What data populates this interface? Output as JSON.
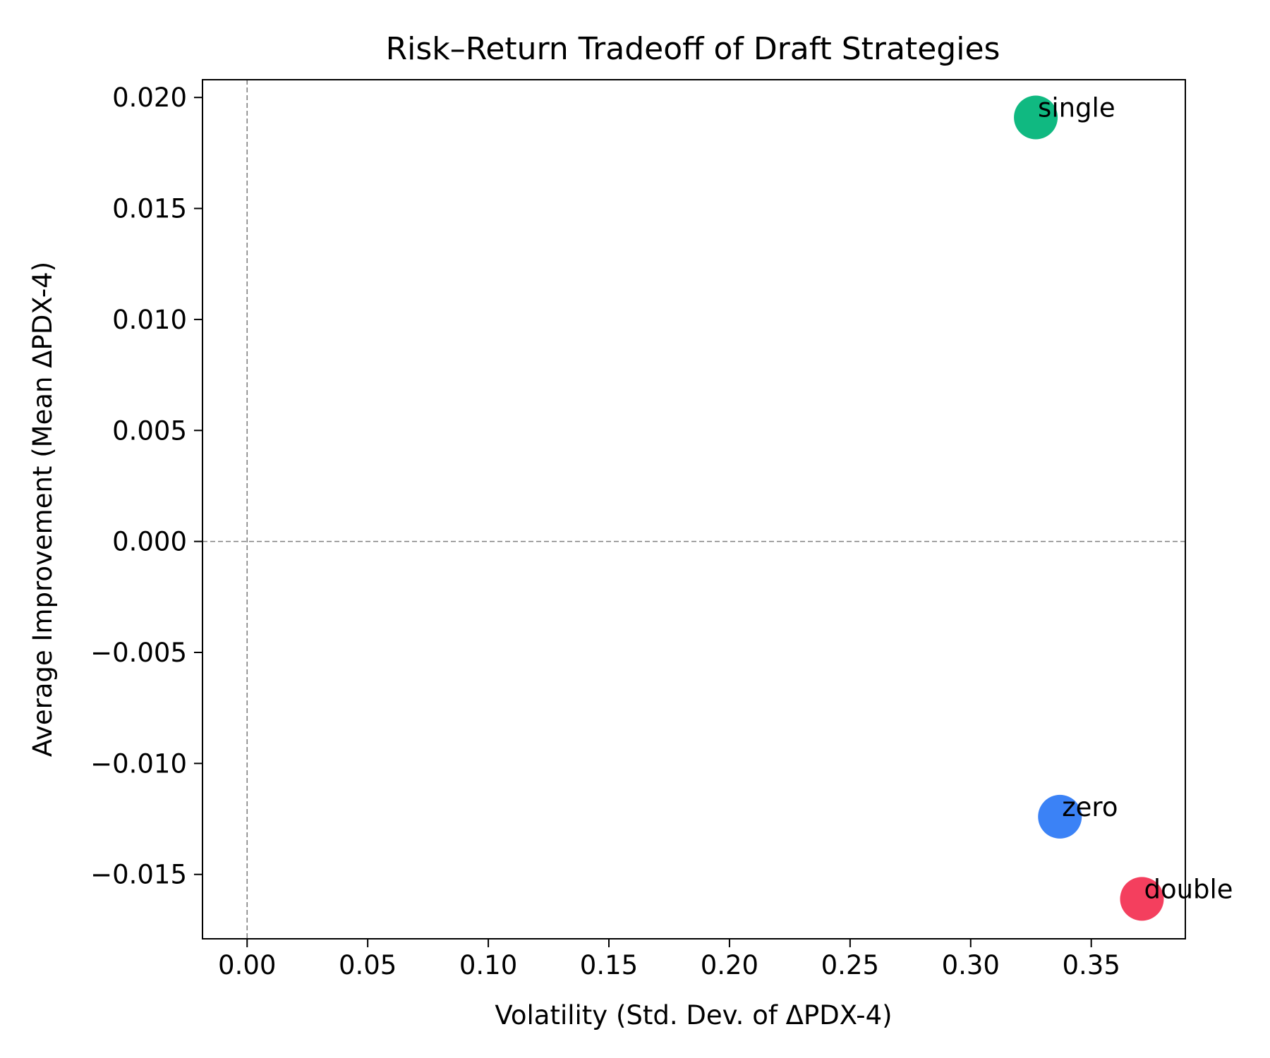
{
  "chart_data": {
    "type": "scatter",
    "title": "Risk–Return Tradeoff of Draft Strategies",
    "xlabel": "Volatility (Std. Dev. of ΔPDX-4)",
    "ylabel": "Average Improvement (Mean ΔPDX-4)",
    "xlim": [
      -0.0185,
      0.389
    ],
    "ylim": [
      -0.0179,
      0.0208
    ],
    "x_ticks": [
      0.0,
      0.05,
      0.1,
      0.15,
      0.2,
      0.25,
      0.3,
      0.35
    ],
    "x_tick_labels": [
      "0.00",
      "0.05",
      "0.10",
      "0.15",
      "0.20",
      "0.25",
      "0.30",
      "0.35"
    ],
    "y_ticks": [
      0.02,
      0.015,
      0.01,
      0.005,
      0.0,
      -0.005,
      -0.01,
      -0.015
    ],
    "y_tick_labels": [
      "0.020",
      "0.015",
      "0.010",
      "0.005",
      "0.000",
      "−0.005",
      "−0.010",
      "−0.015"
    ],
    "reference_lines": {
      "x": 0,
      "y": 0,
      "style": "dashed",
      "color": "#808080"
    },
    "grid": false,
    "points": [
      {
        "label": "single",
        "x": 0.327,
        "y": 0.0191,
        "color": "#10b981"
      },
      {
        "label": "zero",
        "x": 0.337,
        "y": -0.0124,
        "color": "#3b82f6"
      },
      {
        "label": "double",
        "x": 0.371,
        "y": -0.0161,
        "color": "#f43f5e"
      }
    ]
  }
}
